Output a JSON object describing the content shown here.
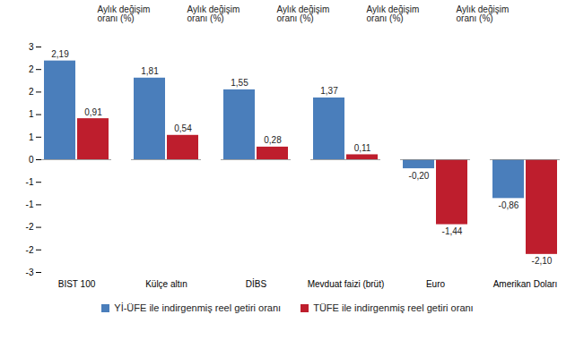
{
  "chart_data": {
    "type": "bar",
    "y_label": "Aylık değişim\noranı (%)",
    "categories": [
      "BIST 100",
      "Külçe altın",
      "DİBS",
      "Mevduat faizi (brüt)",
      "Euro",
      "Amerikan Doları"
    ],
    "series": [
      {
        "name": "Yİ-ÜFE ile indirgenmiş reel getiri oranı",
        "color": "#4a7ebb",
        "values": [
          2.19,
          1.81,
          1.55,
          1.37,
          -0.2,
          -0.86
        ],
        "value_labels": [
          "2,19",
          "1,81",
          "1,55",
          "1,37",
          "-0,20",
          "-0,86"
        ]
      },
      {
        "name": "TÜFE ile indirgenmiş reel getiri oranı",
        "color": "#be1e2d",
        "values": [
          0.91,
          0.54,
          0.28,
          0.11,
          -1.44,
          -2.1
        ],
        "value_labels": [
          "0,91",
          "0,54",
          "0,28",
          "0,11",
          "-1,44",
          "-2,10"
        ]
      }
    ],
    "ylim": [
      -2.5,
      2.5
    ],
    "yticks": [
      {
        "value": 2.5,
        "label": "3"
      },
      {
        "value": 2,
        "label": "2"
      },
      {
        "value": 1.5,
        "label": "2"
      },
      {
        "value": 1,
        "label": "1"
      },
      {
        "value": 0.5,
        "label": "1"
      },
      {
        "value": 0,
        "label": "0"
      },
      {
        "value": -0.5,
        "label": "-1"
      },
      {
        "value": -1,
        "label": "-1"
      },
      {
        "value": -1.5,
        "label": "-2"
      },
      {
        "value": -2,
        "label": "-2"
      },
      {
        "value": -2.5,
        "label": "-3"
      }
    ],
    "grid": false,
    "data_labels": true,
    "legend": "bottom"
  }
}
